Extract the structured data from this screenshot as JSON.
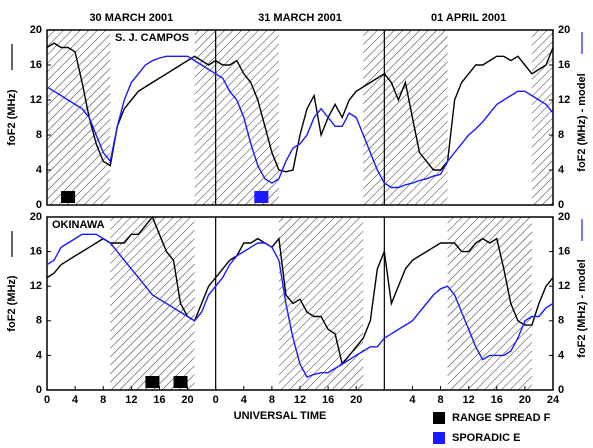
{
  "chart_data": [
    {
      "type": "line",
      "station": "S. J. CAMPOS",
      "day_labels": [
        "30 MARCH 2001",
        "31 MARCH 2001",
        "01 APRIL 2001"
      ],
      "day_boundaries": [
        24,
        48
      ],
      "ylabel": "foF2 (MHz)",
      "y2label": "foF2 (MHz) - model",
      "xlim": [
        0,
        72
      ],
      "ylim": [
        0,
        20
      ],
      "yticks": [
        0,
        4,
        8,
        12,
        16,
        20
      ],
      "y2lim": [
        0,
        20
      ],
      "y2ticks": [
        0,
        4,
        8,
        12,
        16,
        20
      ],
      "night_spans": [
        [
          0,
          9
        ],
        [
          21,
          33
        ],
        [
          45,
          57
        ],
        [
          69,
          72
        ]
      ],
      "events": [
        [
          [
            2,
            4
          ]
        ],
        [
          [
            29.5,
            31.5
          ]
        ]
      ],
      "x": [
        0,
        1,
        2,
        3,
        4,
        5,
        6,
        7,
        8,
        9,
        10,
        11,
        12,
        13,
        14,
        15,
        16,
        17,
        18,
        19,
        20,
        21,
        22,
        23,
        24,
        25,
        26,
        27,
        28,
        29,
        30,
        31,
        32,
        33,
        34,
        35,
        36,
        37,
        38,
        39,
        40,
        41,
        42,
        43,
        44,
        45,
        46,
        47,
        48,
        49,
        50,
        51,
        52,
        53,
        54,
        55,
        56,
        57,
        58,
        59,
        60,
        61,
        62,
        63,
        64,
        65,
        66,
        67,
        68,
        69,
        70,
        71,
        72
      ],
      "series": [
        {
          "color": "#000000",
          "values": [
            18,
            18.5,
            18,
            18,
            17.5,
            14,
            10,
            7,
            5,
            4.5,
            9,
            11,
            12,
            13,
            13.5,
            14,
            14.5,
            15,
            15.5,
            16,
            16.5,
            17,
            16.5,
            16,
            16.5,
            16,
            16,
            16.5,
            15,
            14,
            12,
            9,
            6,
            4,
            3.8,
            4,
            8,
            11,
            12.5,
            8,
            10,
            11.5,
            10,
            12,
            13,
            13.5,
            14,
            14.5,
            15,
            14,
            12,
            14,
            10,
            6,
            5,
            4,
            4,
            5,
            12,
            14,
            15,
            16,
            16,
            16.5,
            17,
            17,
            16.5,
            17,
            16,
            15,
            15.5,
            16,
            18
          ]
        },
        {
          "color": "#1a1aff",
          "axis": "y2",
          "values": [
            13.5,
            13,
            12.5,
            12,
            11.5,
            11,
            10,
            8,
            6,
            5,
            9,
            12,
            14,
            15,
            16,
            16.5,
            16.8,
            17,
            17,
            17,
            17,
            16.5,
            16,
            15.5,
            15,
            14.5,
            13,
            12,
            10,
            7,
            4.5,
            3,
            2.5,
            3,
            5,
            6.5,
            7,
            8,
            10,
            11,
            10,
            9,
            9,
            10.5,
            10,
            8,
            6,
            4,
            2.5,
            2,
            2,
            2.3,
            2.5,
            2.8,
            3,
            3.3,
            3.5,
            5,
            6,
            7,
            8,
            8.7,
            9.5,
            10.5,
            11.5,
            12,
            12.5,
            13,
            13,
            12.5,
            12,
            11.5,
            10.5
          ]
        }
      ]
    },
    {
      "type": "line",
      "station": "OKINAWA",
      "ylabel": "foF2 (MHz)",
      "y2label": "foF2 (MHz) - model",
      "xlabel": "UNIVERSAL TIME",
      "day_boundaries": [
        24,
        48
      ],
      "xlim": [
        0,
        72
      ],
      "xticks": [
        0,
        4,
        8,
        12,
        16,
        20,
        {
          "value": 24,
          "label": "0"
        },
        {
          "value": 28,
          "label": "4"
        },
        {
          "value": 32,
          "label": "8"
        },
        {
          "value": 36,
          "label": "12"
        },
        {
          "value": 40,
          "label": "16"
        },
        {
          "value": 44,
          "label": "20"
        },
        {
          "value": 52,
          "label": "4"
        },
        {
          "value": 56,
          "label": "8"
        },
        {
          "value": 60,
          "label": "12"
        },
        {
          "value": 64,
          "label": "16"
        },
        {
          "value": 68,
          "label": "20"
        },
        {
          "value": 72,
          "label": "24"
        }
      ],
      "ylim": [
        0,
        20
      ],
      "yticks": [
        0,
        4,
        8,
        12,
        16,
        20
      ],
      "y2lim": [
        0,
        20
      ],
      "y2ticks": [
        0,
        4,
        8,
        12,
        16,
        20
      ],
      "night_spans": [
        [
          9,
          21
        ],
        [
          33,
          45
        ],
        [
          57,
          69
        ]
      ],
      "events": [
        [
          [
            14,
            16
          ],
          [
            18,
            20
          ]
        ],
        []
      ],
      "x": [
        0,
        1,
        2,
        3,
        4,
        5,
        6,
        7,
        8,
        9,
        10,
        11,
        12,
        13,
        14,
        15,
        16,
        17,
        18,
        19,
        20,
        21,
        22,
        23,
        24,
        25,
        26,
        27,
        28,
        29,
        30,
        31,
        32,
        33,
        34,
        35,
        36,
        37,
        38,
        39,
        40,
        41,
        42,
        43,
        44,
        45,
        46,
        47,
        48,
        49,
        50,
        51,
        52,
        53,
        54,
        55,
        56,
        57,
        58,
        59,
        60,
        61,
        62,
        63,
        64,
        65,
        66,
        67,
        68,
        69,
        70,
        71,
        72
      ],
      "series": [
        {
          "color": "#000000",
          "values": [
            13,
            13.5,
            14.5,
            15,
            15.5,
            16,
            16.5,
            17,
            17.5,
            17,
            17,
            17,
            18,
            18,
            19,
            20,
            18,
            16,
            15,
            10,
            8.5,
            8,
            10,
            12,
            13,
            14,
            15,
            15.5,
            17,
            17,
            17.5,
            17,
            16.5,
            17.5,
            11,
            10,
            10.5,
            9,
            8.5,
            8.5,
            7,
            6.5,
            3,
            4,
            5,
            6,
            8,
            14,
            16,
            10,
            12,
            14,
            15,
            15.5,
            16,
            16.5,
            17,
            17,
            17,
            16,
            16,
            17,
            17.5,
            17,
            17.5,
            14,
            10,
            8,
            7.5,
            7.5,
            10,
            12,
            13
          ]
        },
        {
          "color": "#1a1aff",
          "axis": "y2",
          "values": [
            14.5,
            15,
            16.5,
            17,
            17.5,
            18,
            18,
            18,
            17.5,
            17,
            16,
            15,
            14,
            13,
            12,
            11,
            10.5,
            10,
            9.5,
            9,
            8.5,
            8,
            9,
            11,
            12,
            13,
            14.5,
            15.5,
            16,
            16.5,
            17,
            17,
            16.5,
            15,
            10,
            6,
            3,
            1.5,
            1.8,
            2,
            2,
            2.5,
            3,
            3.5,
            4,
            4.5,
            5,
            5,
            6,
            6.5,
            7,
            7.5,
            8,
            9,
            10,
            11,
            11.7,
            12,
            11,
            9,
            7,
            5,
            3.5,
            4,
            4,
            4,
            4.5,
            6,
            8,
            8.5,
            8.5,
            9.5,
            10
          ]
        }
      ]
    }
  ],
  "event_types": [
    {
      "name": "RANGE SPREAD F",
      "color": "#000000"
    },
    {
      "name": "SPORADIC E",
      "color": "#1a1aff"
    }
  ]
}
